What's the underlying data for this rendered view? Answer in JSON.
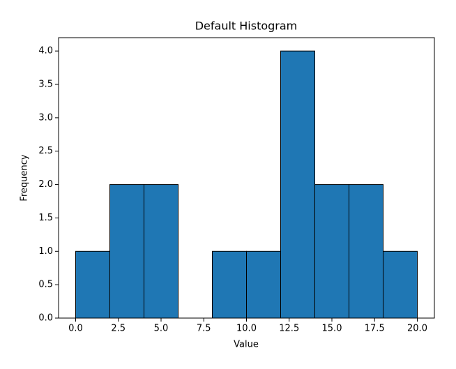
{
  "chart_data": {
    "type": "histogram",
    "title": "Default Histogram",
    "x_label": "Value",
    "y_label": "Frequency",
    "bins": [
      0,
      2,
      4,
      6,
      8,
      10,
      12,
      14,
      16,
      18,
      20
    ],
    "values": [
      1,
      2,
      2,
      0,
      1,
      1,
      4,
      2,
      2,
      1
    ],
    "color": "#1f77b4",
    "edge_color": "#000000",
    "xlim": [
      -1,
      21
    ],
    "xticks": [
      {
        "value": 0,
        "label": "0.0"
      },
      2.5,
      {
        "value": 5,
        "label": "5.0"
      },
      7.5,
      {
        "value": 10,
        "label": "10.0"
      },
      12.5,
      {
        "value": 15,
        "label": "15.0"
      },
      17.5,
      {
        "value": 20,
        "label": "20.0"
      }
    ],
    "ylim": [
      0,
      4.2
    ],
    "yticks": [
      {
        "value": 0,
        "label": "0.0"
      },
      0.5,
      {
        "value": 1,
        "label": "1.0"
      },
      1.5,
      {
        "value": 2,
        "label": "2.0"
      },
      2.5,
      {
        "value": 3,
        "label": "3.0"
      },
      3.5,
      {
        "value": 4,
        "label": "4.0"
      }
    ],
    "grid": false
  }
}
